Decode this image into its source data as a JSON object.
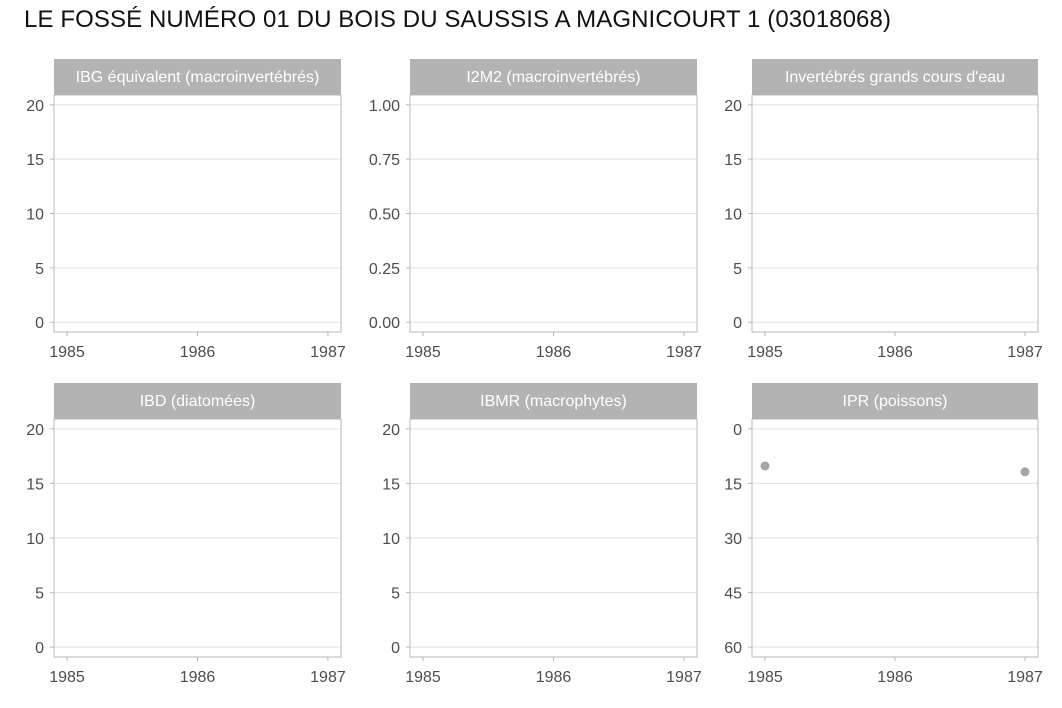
{
  "title": "LE FOSSÉ NUMÉRO 01 DU BOIS DU SAUSSIS A MAGNICOURT 1 (03018068)",
  "colors": {
    "strip": "#b3b3b3",
    "grid": "#e3e3e3",
    "border": "#b8b8b8",
    "point": "#a6a6a6",
    "tick_text": "#4d4d4d"
  },
  "chart_data": [
    {
      "type": "scatter",
      "title": "IBG équivalent (macroinvertébrés)",
      "xticks": [
        "1985",
        "1986",
        "1987"
      ],
      "xlim": [
        1985,
        1987
      ],
      "yticks": [
        "0",
        "5",
        "10",
        "15",
        "20"
      ],
      "ylim": [
        0,
        20
      ],
      "y_reversed": false,
      "grid": true,
      "points": []
    },
    {
      "type": "scatter",
      "title": "I2M2 (macroinvertébrés)",
      "xticks": [
        "1985",
        "1986",
        "1987"
      ],
      "xlim": [
        1985,
        1987
      ],
      "yticks": [
        "0.00",
        "0.25",
        "0.50",
        "0.75",
        "1.00"
      ],
      "ylim": [
        0,
        1
      ],
      "y_reversed": false,
      "grid": true,
      "points": []
    },
    {
      "type": "scatter",
      "title": "Invertébrés grands cours d'eau",
      "xticks": [
        "1985",
        "1986",
        "1987"
      ],
      "xlim": [
        1985,
        1987
      ],
      "yticks": [
        "0",
        "5",
        "10",
        "15",
        "20"
      ],
      "ylim": [
        0,
        20
      ],
      "y_reversed": false,
      "grid": true,
      "points": []
    },
    {
      "type": "scatter",
      "title": "IBD (diatomées)",
      "xticks": [
        "1985",
        "1986",
        "1987"
      ],
      "xlim": [
        1985,
        1987
      ],
      "yticks": [
        "0",
        "5",
        "10",
        "15",
        "20"
      ],
      "ylim": [
        0,
        20
      ],
      "y_reversed": false,
      "grid": true,
      "points": []
    },
    {
      "type": "scatter",
      "title": "IBMR (macrophytes)",
      "xticks": [
        "1985",
        "1986",
        "1987"
      ],
      "xlim": [
        1985,
        1987
      ],
      "yticks": [
        "0",
        "5",
        "10",
        "15",
        "20"
      ],
      "ylim": [
        0,
        20
      ],
      "y_reversed": false,
      "grid": true,
      "points": []
    },
    {
      "type": "scatter",
      "title": "IPR (poissons)",
      "xticks": [
        "1985",
        "1986",
        "1987"
      ],
      "xlim": [
        1985,
        1987
      ],
      "yticks": [
        "0",
        "15",
        "30",
        "45",
        "60"
      ],
      "ylim": [
        0,
        60
      ],
      "y_reversed": true,
      "grid": true,
      "points": [
        {
          "x": 1985,
          "y": 10.2
        },
        {
          "x": 1987,
          "y": 11.8
        }
      ]
    }
  ]
}
